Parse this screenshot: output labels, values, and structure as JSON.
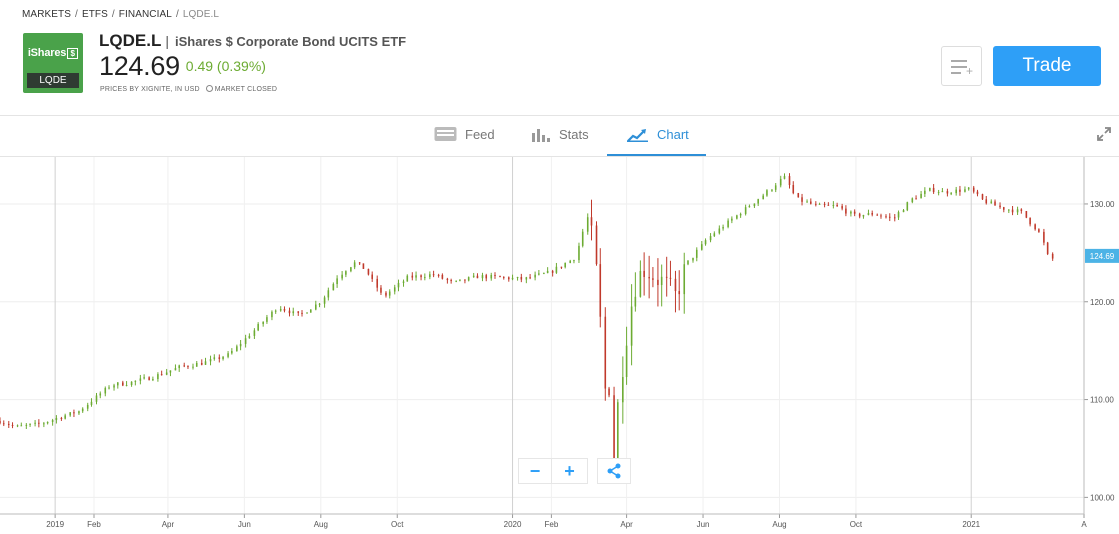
{
  "breadcrumb": [
    "MARKETS",
    "ETFS",
    "FINANCIAL",
    "LQDE.L"
  ],
  "instrument": {
    "logo_brand": "iShares",
    "logo_box": "$",
    "logo_ticker": "LQDE",
    "symbol": "LQDE.L",
    "separator": "|",
    "name": "iShares $ Corporate Bond UCITS ETF",
    "price": "124.69",
    "change": "0.49 (0.39%)",
    "provider": "PRICES BY XIGNITE, IN USD",
    "market_status": "MARKET CLOSED"
  },
  "actions": {
    "trade_label": "Trade"
  },
  "tabs": [
    {
      "label": "Feed",
      "icon": "feed-icon"
    },
    {
      "label": "Stats",
      "icon": "stats-icon"
    },
    {
      "label": "Chart",
      "icon": "chart-icon",
      "active": true
    }
  ],
  "zoom_controls": {
    "zoom_out": "−",
    "zoom_in": "+"
  },
  "colors": {
    "up": "#6cab32",
    "down": "#c0392b",
    "accent": "#2e9ff7",
    "price_tag": "#4cb3e6"
  },
  "chart_data": {
    "type": "candlestick",
    "title": "",
    "xlabel": "",
    "ylabel": "",
    "ylim": [
      98.3,
      134.8
    ],
    "xlim": [
      "2018-11-18",
      "2021-04-01"
    ],
    "y_ticks": [
      "100.00",
      "110.00",
      "120.00",
      "130.00"
    ],
    "x_ticks": [
      {
        "date": "2019-01-01",
        "label": "2019"
      },
      {
        "date": "2019-02-01",
        "label": "Feb"
      },
      {
        "date": "2019-04-01",
        "label": "Apr"
      },
      {
        "date": "2019-06-01",
        "label": "Jun"
      },
      {
        "date": "2019-08-01",
        "label": "Aug"
      },
      {
        "date": "2019-10-01",
        "label": "Oct"
      },
      {
        "date": "2020-01-01",
        "label": "2020"
      },
      {
        "date": "2020-02-01",
        "label": "Feb"
      },
      {
        "date": "2020-04-01",
        "label": "Apr"
      },
      {
        "date": "2020-06-01",
        "label": "Jun"
      },
      {
        "date": "2020-08-01",
        "label": "Aug"
      },
      {
        "date": "2020-10-01",
        "label": "Oct"
      },
      {
        "date": "2021-01-01",
        "label": "2021"
      },
      {
        "date": "2021-04-01",
        "label": "A"
      }
    ],
    "last_price_label": "124.69",
    "last_price": 124.69,
    "grid": true,
    "legend": "none",
    "series": [
      {
        "x": [
          "2018-11-18",
          "2018-12-01",
          "2018-12-20",
          "2019-01-05",
          "2019-01-20",
          "2019-02-15",
          "2019-03-01",
          "2019-03-20",
          "2019-04-10",
          "2019-05-01",
          "2019-05-20",
          "2019-06-10",
          "2019-06-28",
          "2019-07-15",
          "2019-08-01",
          "2019-08-15",
          "2019-08-28",
          "2019-09-05",
          "2019-09-20",
          "2019-10-10",
          "2019-10-30",
          "2019-11-15",
          "2019-12-05",
          "2019-12-20",
          "2020-01-10",
          "2020-01-31",
          "2020-02-20",
          "2020-03-02",
          "2020-03-05",
          "2020-03-09",
          "2020-03-12",
          "2020-03-16",
          "2020-03-19",
          "2020-03-23",
          "2020-03-26",
          "2020-03-31",
          "2020-04-07",
          "2020-04-15",
          "2020-04-30",
          "2020-05-10",
          "2020-05-20",
          "2020-06-05",
          "2020-06-20",
          "2020-07-05",
          "2020-07-25",
          "2020-08-05",
          "2020-08-15",
          "2020-08-31",
          "2020-09-15",
          "2020-09-30",
          "2020-10-15",
          "2020-10-31",
          "2020-11-15",
          "2020-11-30",
          "2020-12-10",
          "2020-12-31",
          "2021-01-10",
          "2021-01-25",
          "2021-02-10",
          "2021-02-25",
          "2021-03-05",
          "2021-03-10"
        ],
        "close": [
          107.8,
          107.2,
          107.5,
          108.2,
          108.8,
          111.5,
          111.7,
          112.3,
          113.3,
          113.8,
          114.6,
          117.2,
          119.5,
          118.6,
          120.0,
          122.6,
          124.0,
          123.4,
          120.5,
          122.5,
          122.8,
          121.9,
          122.6,
          122.5,
          122.3,
          123.0,
          124.5,
          129.0,
          126.0,
          122.0,
          117.0,
          109.0,
          112.0,
          101.0,
          111.0,
          115.5,
          121.5,
          123.5,
          122.0,
          120.5,
          124.0,
          126.5,
          128.0,
          129.5,
          131.5,
          132.8,
          130.5,
          129.8,
          129.8,
          128.8,
          129.0,
          128.5,
          130.5,
          131.5,
          131.2,
          131.5,
          130.4,
          129.6,
          129.2,
          127.0,
          124.2,
          124.69
        ]
      }
    ]
  }
}
